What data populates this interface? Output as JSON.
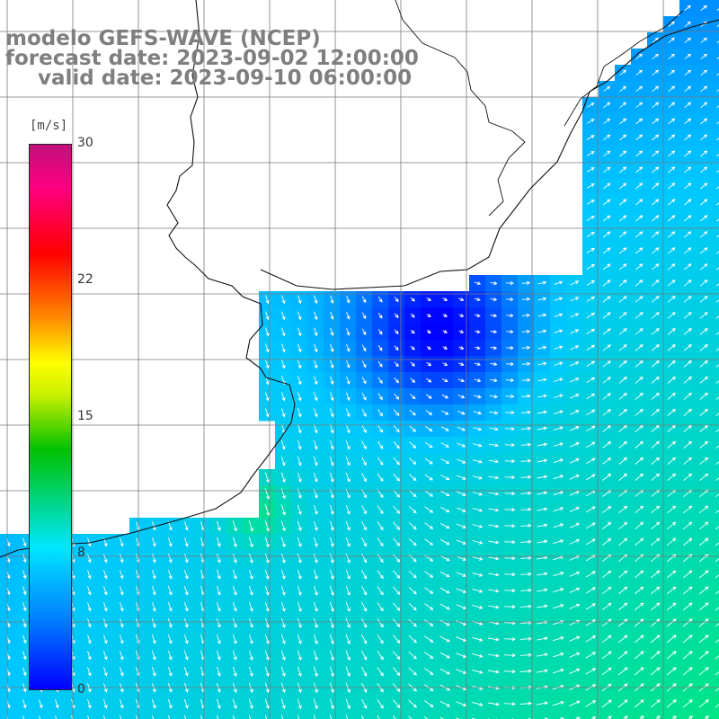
{
  "title": {
    "line1": "modelo GEFS-WAVE (NCEP)",
    "line2": "forecast date: 2023-09-02 12:00:00",
    "line3": "valid date: 2023-09-10 06:00:00"
  },
  "legend": {
    "unit": "[m/s]",
    "ticks": [
      "30",
      "22",
      "15",
      "8",
      "0"
    ],
    "colors": [
      "#0000ff",
      "#0080ff",
      "#00e6ff",
      "#00c000",
      "#ffff00",
      "#ff8000",
      "#ff0000",
      "#c0107a"
    ]
  },
  "field": {
    "variable": "wind speed and direction",
    "low_speed_color": "#0000ff",
    "mid_speed_color": "#00c8ff",
    "high_speed_color": "#00e878",
    "land_color": "#ffffff",
    "arrow_color": "#ffffff",
    "grid_color": "#7a7a7a"
  }
}
